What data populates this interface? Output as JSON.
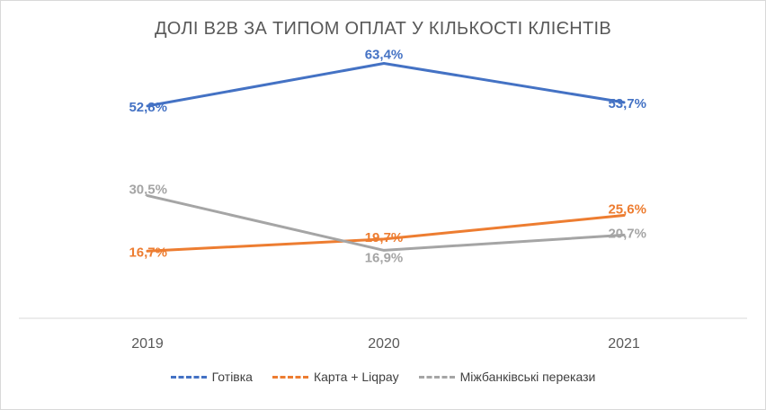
{
  "chart_data": {
    "type": "line",
    "title": "ДОЛІ B2B ЗА ТИПОМ ОПЛАТ У КІЛЬКОСТІ КЛІЄНТІВ",
    "categories": [
      "2019",
      "2020",
      "2021"
    ],
    "ylim": [
      0,
      70
    ],
    "grid": false,
    "legend_position": "bottom",
    "series": [
      {
        "name": "Готівка",
        "color": "#4472C4",
        "values": [
          52.8,
          63.4,
          53.7
        ],
        "labels": [
          "52,8%",
          "63,4%",
          "53,7%"
        ]
      },
      {
        "name": "Карта + Liqpay",
        "color": "#ED7D31",
        "values": [
          16.7,
          19.7,
          25.6
        ],
        "labels": [
          "16,7%",
          "19,7%",
          "25,6%"
        ]
      },
      {
        "name": "Міжбанківські перекази",
        "color": "#A5A5A5",
        "values": [
          30.5,
          16.9,
          20.7
        ],
        "labels": [
          "30,5%",
          "16,9%",
          "20,7%"
        ]
      }
    ]
  }
}
